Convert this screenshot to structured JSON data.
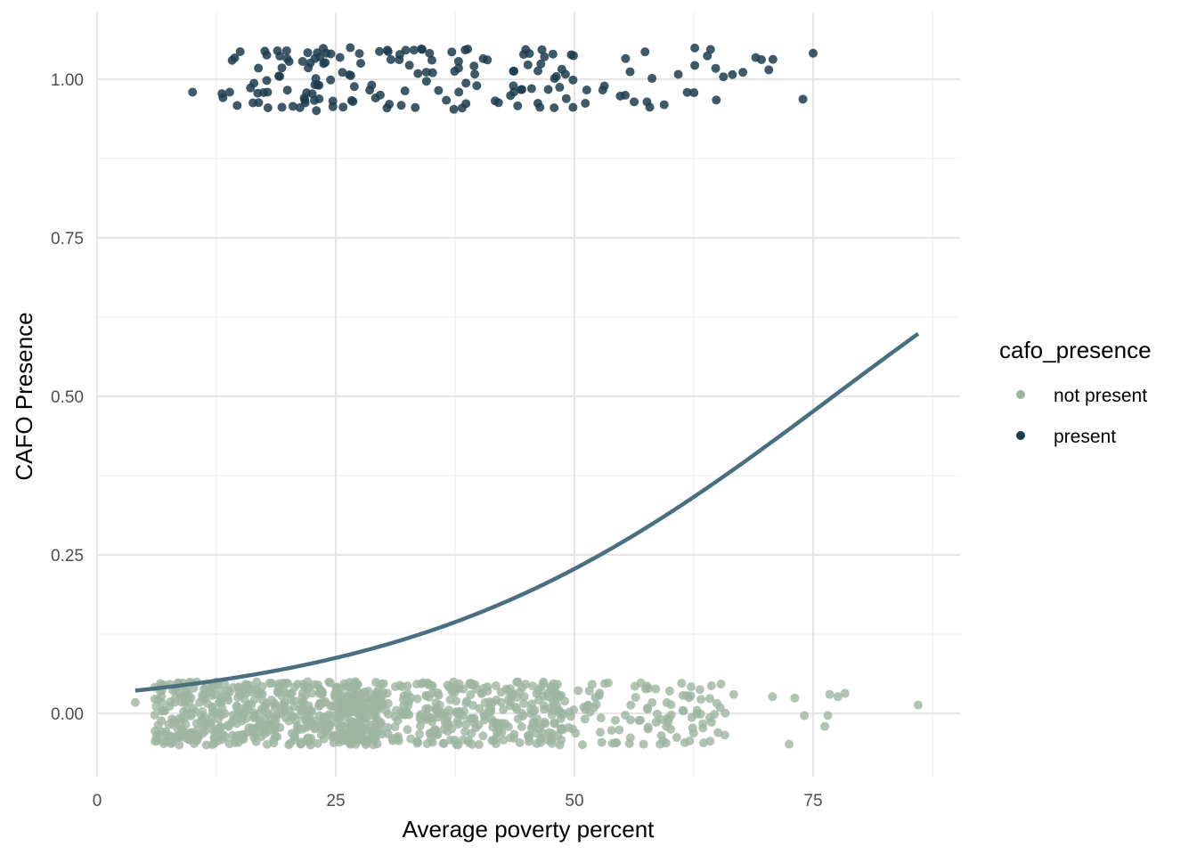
{
  "chart_data": {
    "type": "scatter",
    "title": "",
    "xlabel": "Average poverty percent",
    "ylabel": "CAFO Presence",
    "xlim": [
      0,
      90
    ],
    "ylim": [
      -0.07,
      1.07
    ],
    "x_ticks": [
      "0",
      "25",
      "50",
      "75"
    ],
    "x_tick_values": [
      0,
      25,
      50,
      75
    ],
    "y_ticks": [
      "0.00",
      "0.25",
      "0.50",
      "0.75",
      "1.00"
    ],
    "y_tick_values": [
      0,
      0.25,
      0.5,
      0.75,
      1.0
    ],
    "grid": true,
    "legend": {
      "title": "cafo_presence",
      "placement": "right",
      "entries": [
        {
          "label": "not present",
          "color": "#9db5a0"
        },
        {
          "label": "present",
          "color": "#1c3d4f"
        }
      ]
    },
    "series": [
      {
        "name": "not present",
        "color": "#9db5a0",
        "y_center": 0,
        "jitter": 0.05,
        "count": 1000,
        "x_min": 4,
        "x_max": 86,
        "x_peak": 18
      },
      {
        "name": "present",
        "color": "#1c3d4f",
        "y_center": 1,
        "jitter": 0.05,
        "count": 180,
        "x_min": 10,
        "x_max": 75
      }
    ],
    "fit_line": {
      "type": "logistic",
      "color": "#4a6f80",
      "x": [
        4,
        10,
        20,
        30,
        40,
        50,
        60,
        70,
        80,
        86
      ],
      "y": [
        0.039,
        0.048,
        0.072,
        0.105,
        0.155,
        0.215,
        0.29,
        0.375,
        0.485,
        0.556
      ]
    }
  }
}
